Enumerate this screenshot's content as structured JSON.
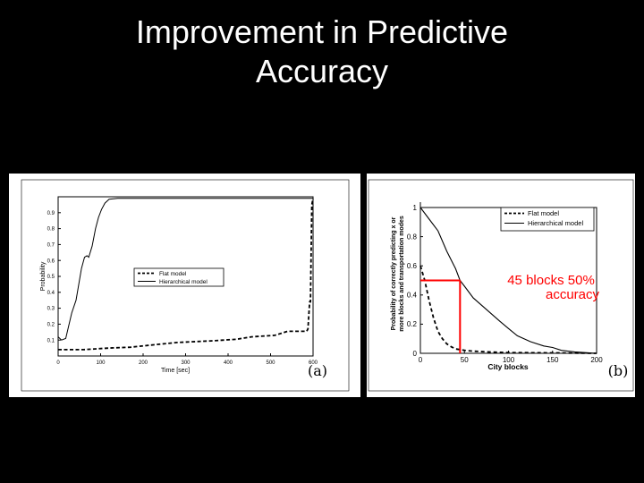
{
  "title": {
    "line1": "Improvement in Predictive",
    "line2": "Accuracy"
  },
  "colors": {
    "background": "#000000",
    "title_text": "#ffffff",
    "panel_bg": "#ffffff",
    "annotation": "#ff0000"
  },
  "chart_data": [
    {
      "type": "line",
      "panel_label": "(a)",
      "xlabel": "Time [sec]",
      "ylabel": "Probability",
      "xlim": [
        0,
        600
      ],
      "ylim": [
        0,
        1
      ],
      "x_ticks": [
        0,
        100,
        200,
        300,
        400,
        500,
        600
      ],
      "x_tick_labels": [
        "0",
        "100",
        "200",
        "300",
        "400",
        "500",
        "600"
      ],
      "y_ticks": [
        0.1,
        0.2,
        0.3,
        0.4,
        0.5,
        0.6,
        0.7,
        0.8,
        0.9
      ],
      "y_tick_labels": [
        "0.1",
        "0.2",
        "0.3",
        "0.4",
        "0.5",
        "0.6",
        "0.7",
        "0.8",
        "0.9"
      ],
      "legend_position": "center-right",
      "series": [
        {
          "name": "Flat model",
          "style": "dashed",
          "x": [
            0,
            60,
            120,
            170,
            225,
            280,
            360,
            420,
            455,
            510,
            540,
            585,
            588,
            592,
            594,
            597,
            600
          ],
          "y": [
            0.04,
            0.04,
            0.05,
            0.055,
            0.07,
            0.085,
            0.095,
            0.105,
            0.12,
            0.13,
            0.155,
            0.155,
            0.17,
            0.34,
            0.34,
            0.95,
            0.99
          ]
        },
        {
          "name": "Hierarchical model",
          "style": "solid",
          "x": [
            0,
            8,
            18,
            24,
            32,
            42,
            55,
            62,
            68,
            72,
            80,
            88,
            95,
            102,
            110,
            120,
            140,
            200,
            300,
            400,
            500,
            595,
            600
          ],
          "y": [
            0.12,
            0.1,
            0.11,
            0.18,
            0.27,
            0.35,
            0.55,
            0.62,
            0.63,
            0.62,
            0.69,
            0.8,
            0.87,
            0.92,
            0.96,
            0.985,
            0.99,
            0.99,
            0.99,
            0.99,
            0.99,
            0.99,
            0.99
          ]
        }
      ]
    },
    {
      "type": "line",
      "panel_label": "(b)",
      "xlabel": "City blocks",
      "ylabel": "Probability of correctly predicting x or more blocks and transportation modes",
      "xlim": [
        0,
        200
      ],
      "ylim": [
        0,
        1
      ],
      "x_ticks": [
        0,
        50,
        100,
        150,
        200
      ],
      "x_tick_labels": [
        "0",
        "50",
        "100",
        "150",
        "200"
      ],
      "y_ticks": [
        0,
        0.2,
        0.4,
        0.6,
        0.8,
        1
      ],
      "y_tick_labels": [
        "0",
        "0.2",
        "0.4",
        "0.6",
        "0.8",
        "1"
      ],
      "legend_position": "top-right",
      "series": [
        {
          "name": "Flat model",
          "style": "dashed",
          "x": [
            0,
            5,
            10,
            15,
            20,
            25,
            30,
            35,
            40,
            50,
            60,
            75,
            100,
            150,
            200
          ],
          "y": [
            0.6,
            0.5,
            0.36,
            0.24,
            0.15,
            0.1,
            0.065,
            0.045,
            0.03,
            0.02,
            0.015,
            0.01,
            0.005,
            0.003,
            0.0
          ]
        },
        {
          "name": "Hierarchical model",
          "style": "solid",
          "x": [
            0,
            10,
            20,
            30,
            40,
            45,
            50,
            60,
            75,
            90,
            100,
            110,
            125,
            140,
            150,
            160,
            175,
            200
          ],
          "y": [
            1.0,
            0.92,
            0.84,
            0.7,
            0.58,
            0.5,
            0.46,
            0.38,
            0.3,
            0.22,
            0.17,
            0.12,
            0.08,
            0.05,
            0.04,
            0.02,
            0.01,
            0.0
          ]
        }
      ],
      "annotation": {
        "text_line1": "45 blocks 50%",
        "text_line2": "accuracy",
        "x": 45,
        "y": 0.5,
        "color": "#ff0000"
      }
    }
  ]
}
